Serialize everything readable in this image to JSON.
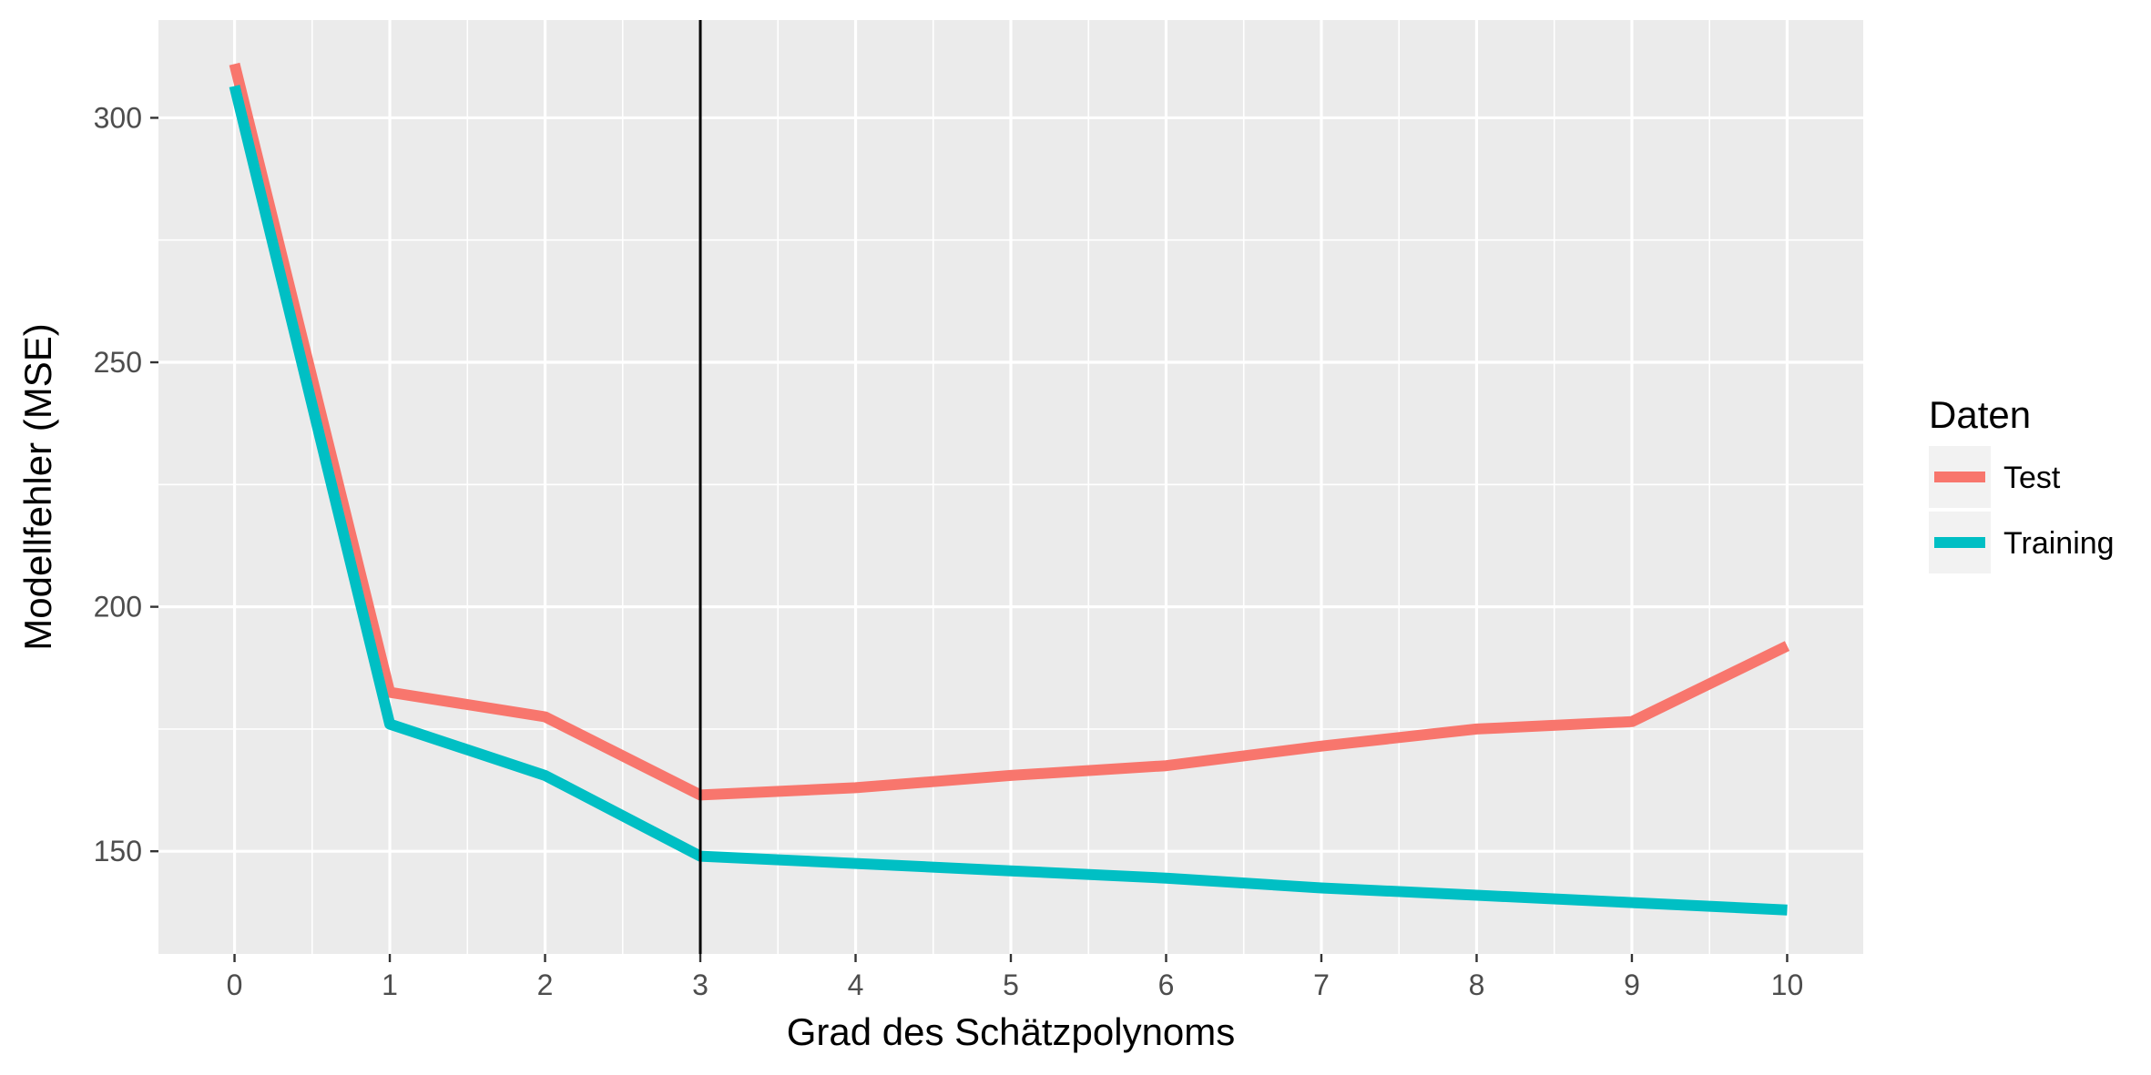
{
  "chart_data": {
    "type": "line",
    "title": "",
    "xlabel": "Grad des Schätzpolynoms",
    "ylabel": "Modellfehler (MSE)",
    "x": [
      0,
      1,
      2,
      3,
      4,
      5,
      6,
      7,
      8,
      9,
      10
    ],
    "xticks": [
      0,
      1,
      2,
      3,
      4,
      5,
      6,
      7,
      8,
      9,
      10
    ],
    "yticks": [
      150,
      200,
      250,
      300
    ],
    "xlim": [
      -0.49,
      10.49
    ],
    "ylim": [
      129,
      320
    ],
    "grid": true,
    "vline": {
      "x": 3,
      "color": "#000000"
    },
    "legend": {
      "title": "Daten",
      "position": "right"
    },
    "series": [
      {
        "name": "Test",
        "color": "#F8766D",
        "values": [
          311,
          182.5,
          177.5,
          161.5,
          163,
          165.5,
          167.5,
          171.5,
          175,
          176.5,
          192
        ]
      },
      {
        "name": "Training",
        "color": "#00BFC4",
        "values": [
          306.5,
          176,
          165.5,
          149,
          147.5,
          146,
          144.5,
          142.5,
          141,
          139.5,
          138
        ]
      }
    ]
  }
}
